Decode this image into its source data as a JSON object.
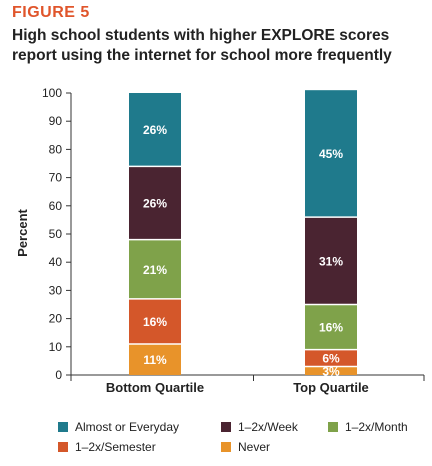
{
  "figure_label": "FIGURE 5",
  "chart_data": {
    "type": "bar",
    "stacked": true,
    "title": "High school students with higher EXPLORE scores report using the internet for school more frequently",
    "xlabel": "",
    "ylabel": "Percent",
    "ylim": [
      0,
      100
    ],
    "yticks": [
      0,
      10,
      20,
      30,
      40,
      50,
      60,
      70,
      80,
      90,
      100
    ],
    "categories": [
      "Bottom Quartile",
      "Top Quartile"
    ],
    "series": [
      {
        "name": "Never",
        "color": "#e8932a",
        "values": [
          11,
          3
        ],
        "labels": [
          "11%",
          "3%"
        ]
      },
      {
        "name": "1–2x/Semester",
        "color": "#d4572a",
        "values": [
          16,
          6
        ],
        "labels": [
          "16%",
          "6%"
        ]
      },
      {
        "name": "1–2x/Month",
        "color": "#7fa24a",
        "values": [
          21,
          16
        ],
        "labels": [
          "21%",
          "16%"
        ]
      },
      {
        "name": "1–2x/Week",
        "color": "#4a2431",
        "values": [
          26,
          31
        ],
        "labels": [
          "26%",
          "31%"
        ]
      },
      {
        "name": "Almost or Everyday",
        "color": "#1f7a8c",
        "values": [
          26,
          45
        ],
        "labels": [
          "26%",
          "45%"
        ]
      }
    ],
    "legend": {
      "position": "bottom",
      "order": [
        "Almost or Everyday",
        "1–2x/Week",
        "1–2x/Month",
        "1–2x/Semester",
        "Never"
      ]
    },
    "grid": false
  }
}
